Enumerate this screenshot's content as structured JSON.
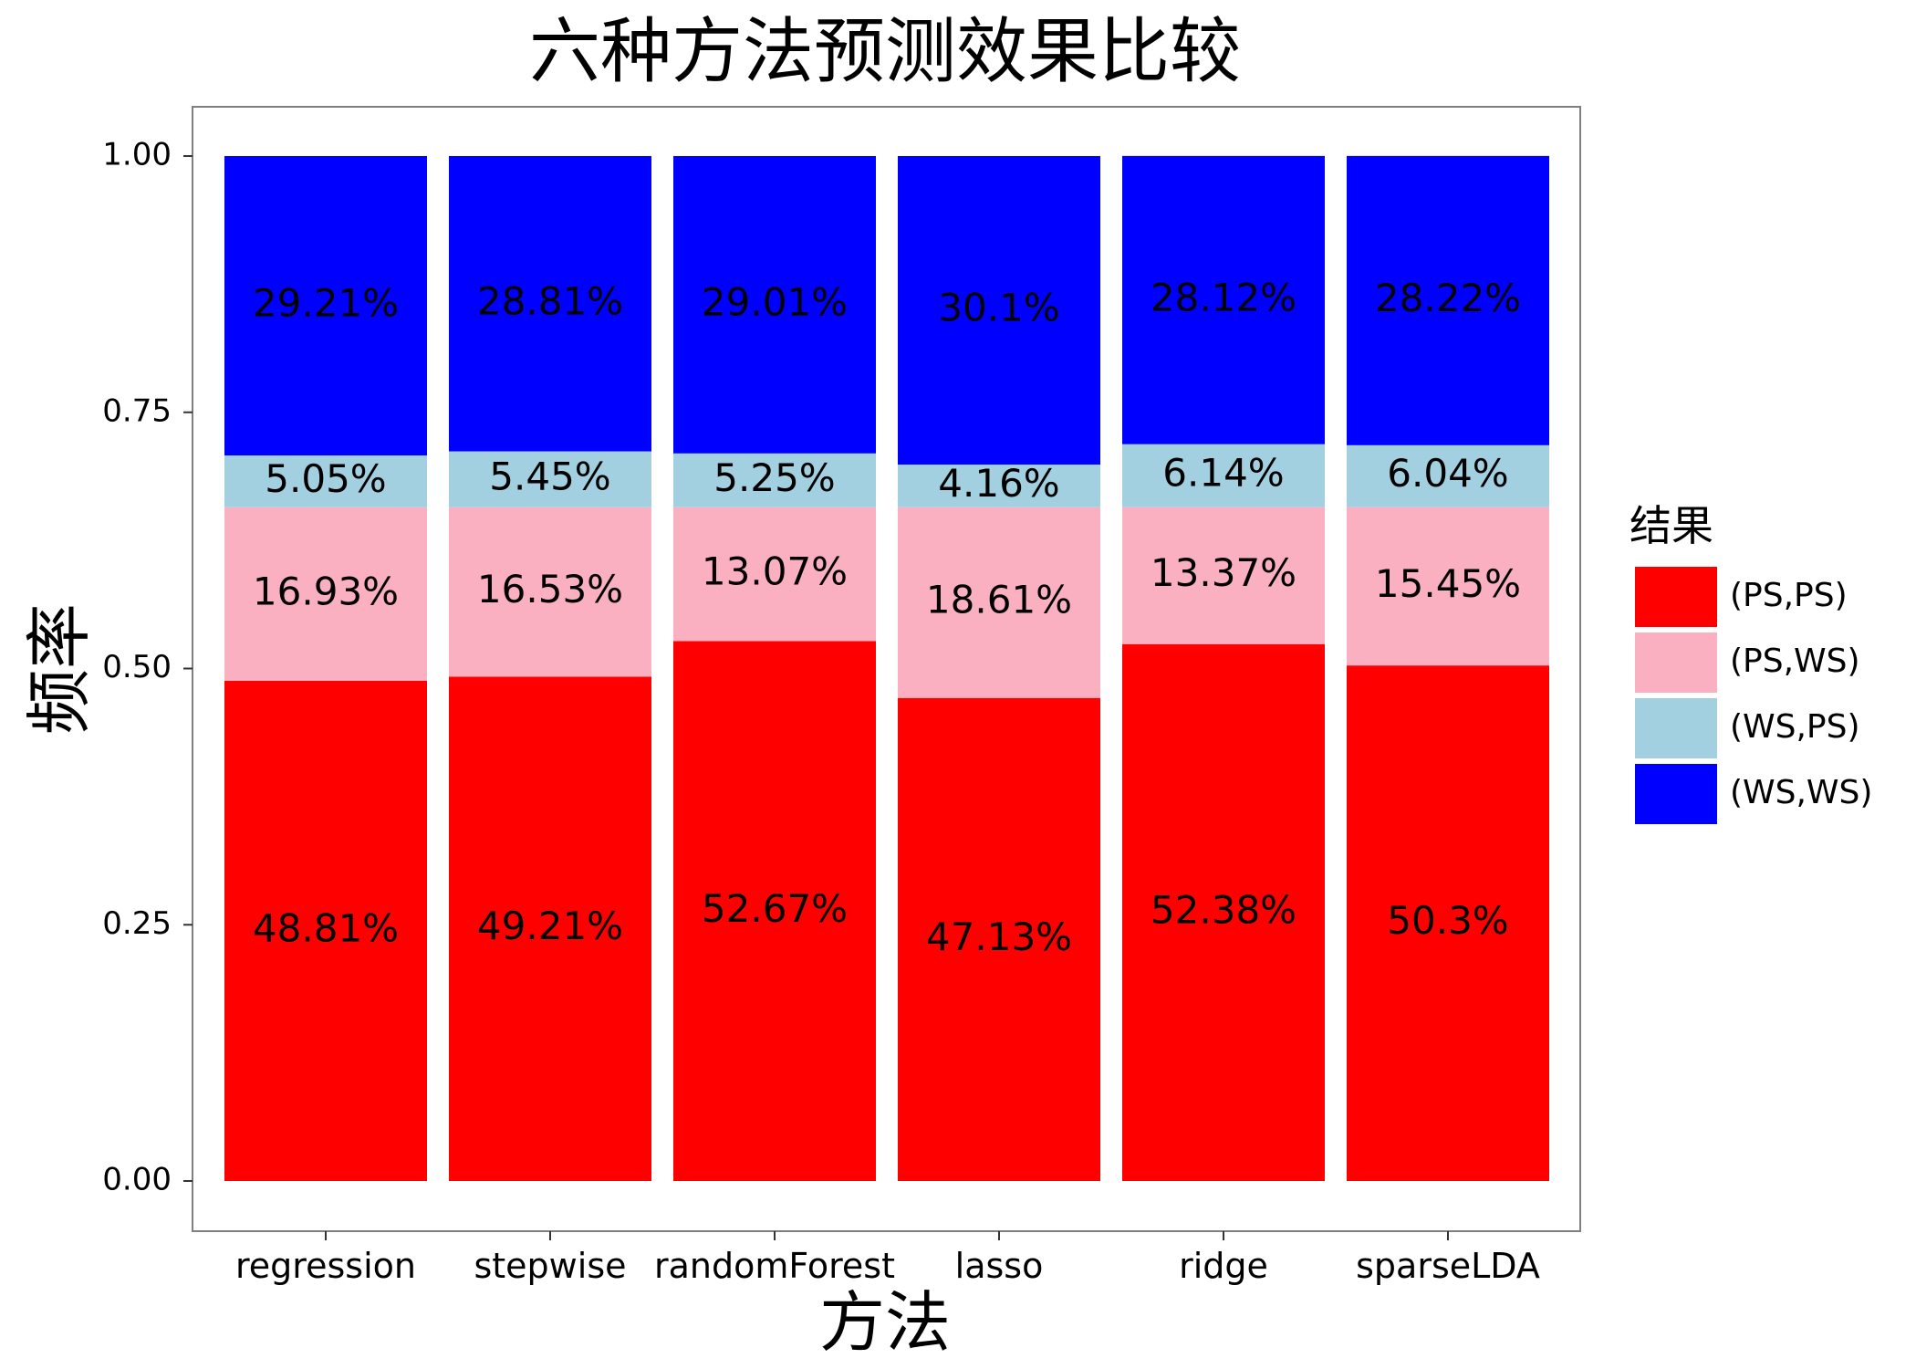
{
  "chart_data": {
    "type": "bar",
    "stacked": true,
    "title": "六种方法预测效果比较",
    "xlabel": "方法",
    "ylabel": "频率",
    "categories": [
      "regression",
      "stepwise",
      "randomForest",
      "lasso",
      "ridge",
      "sparseLDA"
    ],
    "ylim": [
      0,
      1
    ],
    "yticks": [
      "0.00",
      "0.25",
      "0.50",
      "0.75",
      "1.00"
    ],
    "grid": false,
    "legend": {
      "title": "结果",
      "position": "right"
    },
    "series": [
      {
        "name": "(PS,PS)",
        "color": "#fe0000",
        "values": [
          0.4881,
          0.4921,
          0.5267,
          0.4713,
          0.5238,
          0.503
        ],
        "labels": [
          "48.81%",
          "49.21%",
          "52.67%",
          "47.13%",
          "52.38%",
          "50.3%"
        ]
      },
      {
        "name": "(PS,WS)",
        "color": "#fab0c1",
        "values": [
          0.1693,
          0.1653,
          0.1307,
          0.1861,
          0.1337,
          0.1545
        ],
        "labels": [
          "16.93%",
          "16.53%",
          "13.07%",
          "18.61%",
          "13.37%",
          "15.45%"
        ]
      },
      {
        "name": "(WS,PS)",
        "color": "#a2d0e0",
        "values": [
          0.0505,
          0.0545,
          0.0525,
          0.0416,
          0.0614,
          0.0604
        ],
        "labels": [
          "5.05%",
          "5.45%",
          "5.25%",
          "4.16%",
          "6.14%",
          "6.04%"
        ]
      },
      {
        "name": "(WS,WS)",
        "color": "#0000fe",
        "values": [
          0.2921,
          0.2881,
          0.2901,
          0.301,
          0.2812,
          0.2822
        ],
        "labels": [
          "29.21%",
          "28.81%",
          "29.01%",
          "30.1%",
          "28.12%",
          "28.22%"
        ]
      }
    ]
  }
}
